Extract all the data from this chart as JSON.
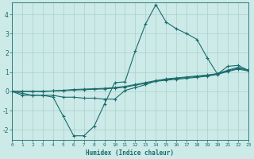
{
  "xlabel": "Humidex (Indice chaleur)",
  "xlim": [
    0,
    23
  ],
  "ylim": [
    -2.5,
    4.6
  ],
  "xticks": [
    0,
    1,
    2,
    3,
    4,
    5,
    6,
    7,
    8,
    9,
    10,
    11,
    12,
    13,
    14,
    15,
    16,
    17,
    18,
    19,
    20,
    21,
    22,
    23
  ],
  "yticks": [
    -2,
    -1,
    0,
    1,
    2,
    3,
    4
  ],
  "bg_color": "#cceae8",
  "grid_color": "#aacfcd",
  "line_color": "#1a6b6b",
  "lines": [
    {
      "x": [
        0,
        1,
        2,
        3,
        4,
        5,
        6,
        7,
        8,
        9,
        10,
        11,
        12,
        13,
        14,
        15,
        16,
        17,
        18,
        19,
        20,
        21,
        22,
        23
      ],
      "y": [
        0,
        -0.2,
        -0.2,
        -0.2,
        -0.3,
        -1.3,
        -2.3,
        -2.3,
        -1.8,
        -0.65,
        0.45,
        0.5,
        2.1,
        3.5,
        4.5,
        3.6,
        3.25,
        3.0,
        2.7,
        1.75,
        0.9,
        1.3,
        1.35,
        1.1
      ]
    },
    {
      "x": [
        0,
        1,
        2,
        3,
        4,
        5,
        6,
        7,
        8,
        9,
        10,
        11,
        12,
        13,
        14,
        15,
        16,
        17,
        18,
        19,
        20,
        21,
        22,
        23
      ],
      "y": [
        0,
        -0.1,
        -0.2,
        -0.2,
        -0.2,
        -0.3,
        -0.3,
        -0.35,
        -0.35,
        -0.4,
        -0.4,
        0.05,
        0.2,
        0.35,
        0.55,
        0.65,
        0.7,
        0.75,
        0.8,
        0.85,
        0.92,
        1.1,
        1.25,
        1.1
      ]
    },
    {
      "x": [
        0,
        1,
        2,
        3,
        4,
        5,
        6,
        7,
        8,
        9,
        10,
        11,
        12,
        13,
        14,
        15,
        16,
        17,
        18,
        19,
        20,
        21,
        22,
        23
      ],
      "y": [
        0,
        0.0,
        0.0,
        0.0,
        0.03,
        0.06,
        0.1,
        0.12,
        0.14,
        0.16,
        0.2,
        0.26,
        0.36,
        0.46,
        0.56,
        0.62,
        0.67,
        0.72,
        0.77,
        0.83,
        0.92,
        1.07,
        1.2,
        1.1
      ]
    },
    {
      "x": [
        0,
        1,
        2,
        3,
        4,
        5,
        6,
        7,
        8,
        9,
        10,
        11,
        12,
        13,
        14,
        15,
        16,
        17,
        18,
        19,
        20,
        21,
        22,
        23
      ],
      "y": [
        0,
        0.0,
        0.0,
        0.0,
        0.02,
        0.04,
        0.07,
        0.09,
        0.11,
        0.13,
        0.17,
        0.22,
        0.32,
        0.42,
        0.52,
        0.58,
        0.63,
        0.68,
        0.73,
        0.79,
        0.88,
        1.03,
        1.16,
        1.06
      ]
    }
  ]
}
